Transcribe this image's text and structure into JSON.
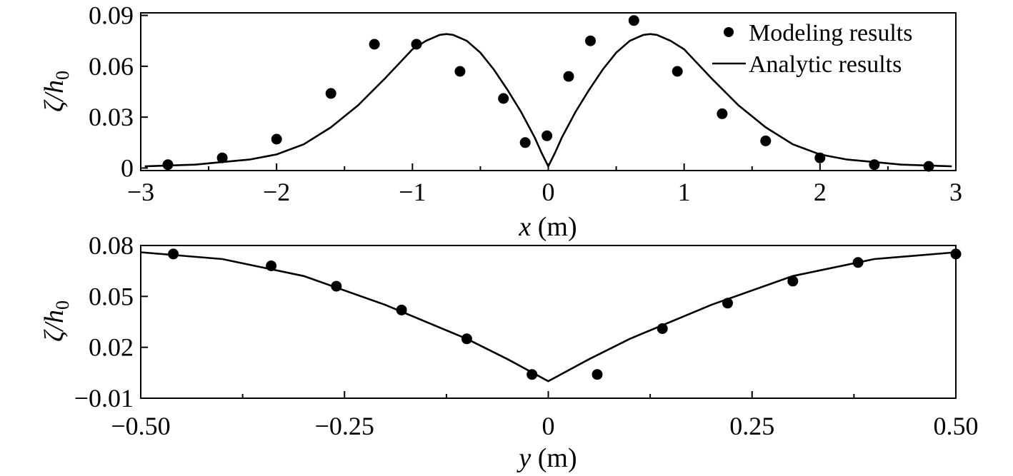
{
  "legend": {
    "modeling_label": "Modeling results",
    "analytic_label": "Analytic results",
    "position": "top-right"
  },
  "chart_data": [
    {
      "type": "scatter",
      "xlabel_var": "x",
      "xlabel_unit": " (m)",
      "ylabel_base": "ζ/",
      "ylabel_var": "h",
      "ylabel_sub": "0",
      "xlim": [
        -3,
        3
      ],
      "ylim": [
        -0.0015,
        0.0915
      ],
      "xticks": [
        -3,
        -2,
        -1,
        0,
        1,
        2,
        3
      ],
      "xtick_labels": [
        "−3",
        "−2",
        "−1",
        "0",
        "1",
        "2",
        "3"
      ],
      "xminor": [
        -2.5,
        -1.5,
        -0.5,
        0.5,
        1.5,
        2.5
      ],
      "yticks": [
        0,
        0.03,
        0.06,
        0.09
      ],
      "ytick_labels": [
        "0",
        "0.03",
        "0.06",
        "0.09"
      ],
      "grid": false,
      "series": [
        {
          "name": "Modeling results",
          "kind": "markers",
          "x": [
            -2.8,
            -2.4,
            -2.0,
            -1.6,
            -1.28,
            -0.97,
            -0.65,
            -0.33,
            -0.17,
            -0.01,
            0.15,
            0.31,
            0.63,
            0.95,
            1.28,
            1.6,
            2.0,
            2.4,
            2.8
          ],
          "y": [
            0.002,
            0.006,
            0.017,
            0.044,
            0.073,
            0.073,
            0.057,
            0.041,
            0.015,
            0.019,
            0.054,
            0.075,
            0.087,
            0.057,
            0.032,
            0.016,
            0.006,
            0.002,
            0.001
          ]
        },
        {
          "name": "Analytic results",
          "kind": "line",
          "x": [
            -2.97,
            -2.8,
            -2.6,
            -2.4,
            -2.2,
            -2.0,
            -1.8,
            -1.6,
            -1.4,
            -1.2,
            -1.0,
            -0.9,
            -0.8,
            -0.75,
            -0.7,
            -0.6,
            -0.5,
            -0.4,
            -0.3,
            -0.2,
            -0.1,
            -0.05,
            0.0,
            0.05,
            0.1,
            0.2,
            0.3,
            0.4,
            0.5,
            0.6,
            0.7,
            0.75,
            0.8,
            0.9,
            1.0,
            1.2,
            1.4,
            1.6,
            1.8,
            2.0,
            2.2,
            2.4,
            2.6,
            2.8,
            2.97
          ],
          "y": [
            0.001,
            0.0015,
            0.002,
            0.0035,
            0.005,
            0.008,
            0.014,
            0.024,
            0.037,
            0.053,
            0.07,
            0.075,
            0.0785,
            0.079,
            0.0785,
            0.075,
            0.068,
            0.058,
            0.046,
            0.033,
            0.018,
            0.009,
            0.001,
            0.009,
            0.018,
            0.033,
            0.046,
            0.058,
            0.068,
            0.075,
            0.0785,
            0.079,
            0.0785,
            0.075,
            0.07,
            0.053,
            0.037,
            0.024,
            0.014,
            0.008,
            0.005,
            0.0035,
            0.002,
            0.0015,
            0.001
          ]
        }
      ]
    },
    {
      "type": "scatter",
      "xlabel_var": "y",
      "xlabel_unit": " (m)",
      "ylabel_base": "ζ/",
      "ylabel_var": "h",
      "ylabel_sub": "0",
      "xlim": [
        -0.5,
        0.5
      ],
      "ylim": [
        -0.01,
        0.08
      ],
      "xticks": [
        -0.5,
        -0.25,
        0,
        0.25,
        0.5
      ],
      "xtick_labels": [
        "−0.50",
        "−0.25",
        "0",
        "0.25",
        "0.50"
      ],
      "xminor": [
        -0.375,
        -0.125,
        0.125,
        0.375
      ],
      "yticks": [
        -0.01,
        0.02,
        0.05,
        0.08
      ],
      "ytick_labels": [
        "−0.01",
        "0.02",
        "0.05",
        "0.08"
      ],
      "grid": false,
      "series": [
        {
          "name": "Modeling results",
          "kind": "markers",
          "x": [
            -0.46,
            -0.34,
            -0.26,
            -0.18,
            -0.1,
            -0.02,
            0.06,
            0.14,
            0.22,
            0.3,
            0.38,
            0.5
          ],
          "y": [
            0.075,
            0.068,
            0.056,
            0.042,
            0.025,
            0.004,
            0.004,
            0.031,
            0.046,
            0.059,
            0.07,
            0.075
          ]
        },
        {
          "name": "Analytic results",
          "kind": "line",
          "x": [
            -0.5,
            -0.4,
            -0.3,
            -0.2,
            -0.1,
            -0.05,
            0.0,
            0.05,
            0.1,
            0.2,
            0.3,
            0.4,
            0.5
          ],
          "y": [
            0.076,
            0.072,
            0.062,
            0.045,
            0.025,
            0.013,
            0.0,
            0.013,
            0.025,
            0.045,
            0.062,
            0.072,
            0.076
          ]
        }
      ]
    }
  ]
}
